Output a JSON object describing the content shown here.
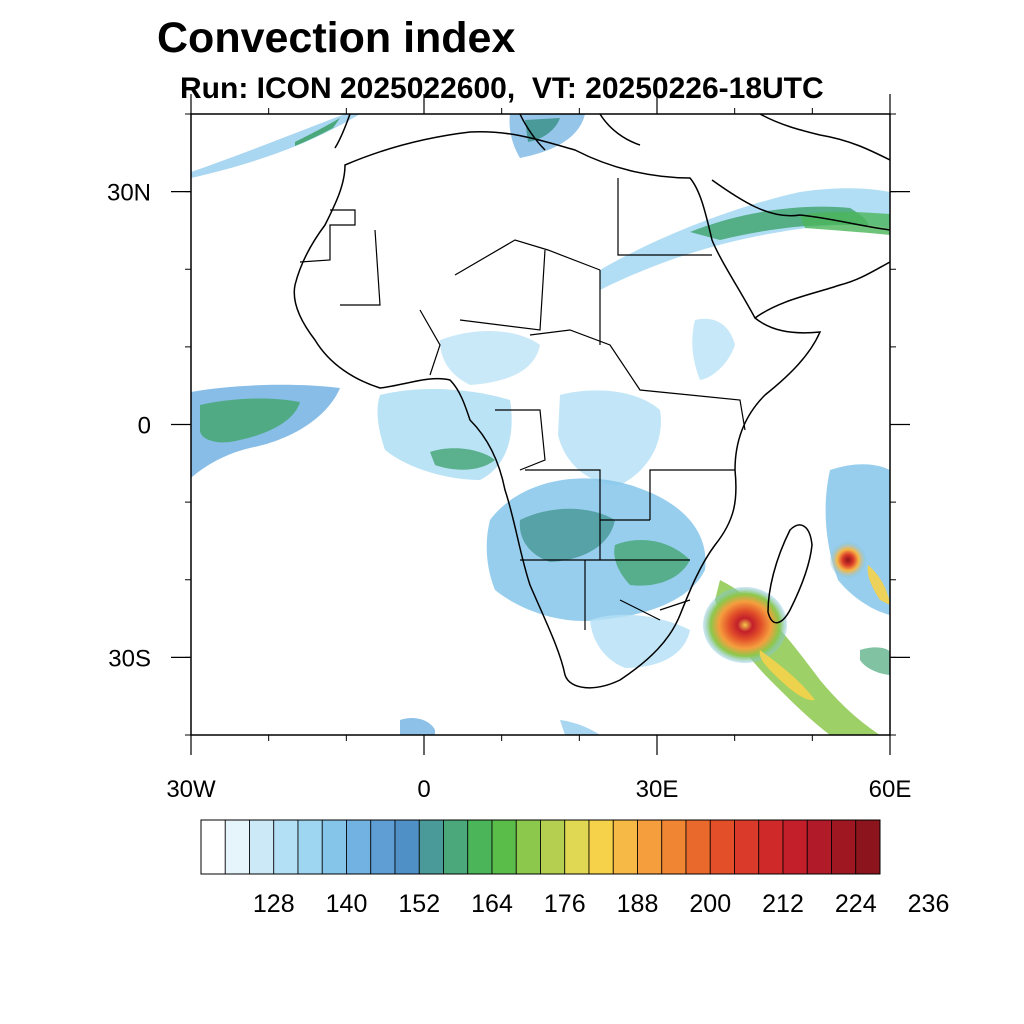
{
  "header": {
    "title": "Convection index",
    "subtitle": "Run: ICON 2025022600,  VT: 20250226-18UTC"
  },
  "map": {
    "lon_range": [
      -30,
      60
    ],
    "lat_range": [
      -40,
      40
    ],
    "y_ticks": [
      {
        "lat": 30,
        "label": "30N"
      },
      {
        "lat": 0,
        "label": "0"
      },
      {
        "lat": -30,
        "label": "30S"
      }
    ],
    "x_ticks": [
      {
        "lon": -30,
        "label": "30W"
      },
      {
        "lon": 0,
        "label": "0"
      },
      {
        "lon": 30,
        "label": "30E"
      },
      {
        "lon": 60,
        "label": "60E"
      }
    ]
  },
  "colorbar": {
    "colors": [
      "#ffffff",
      "#e6f4fb",
      "#cce9f8",
      "#b3e0f5",
      "#9ed6f2",
      "#85c5ea",
      "#72b2e2",
      "#5e9ed4",
      "#4f91c6",
      "#4a9a9a",
      "#4aa87a",
      "#4bb55a",
      "#5abd4a",
      "#8cc84b",
      "#b5d050",
      "#e0d852",
      "#f5d24a",
      "#f7b946",
      "#f59e3e",
      "#f08534",
      "#e9692c",
      "#e24f29",
      "#da3a29",
      "#cf2a29",
      "#c21f2a",
      "#b11a28",
      "#9f1721",
      "#8c141c"
    ],
    "labels": [
      "128",
      "140",
      "152",
      "164",
      "176",
      "188",
      "200",
      "212",
      "224",
      "236"
    ]
  }
}
